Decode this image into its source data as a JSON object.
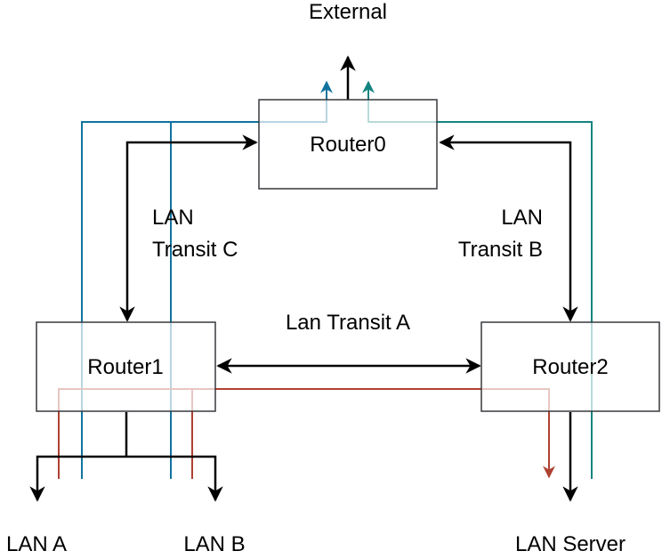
{
  "labels": {
    "external": "External",
    "router0": "Router0",
    "router1": "Router1",
    "router2": "Router2",
    "transit_c_line1": "LAN",
    "transit_c_line2": "Transit C",
    "transit_b_line1": "LAN",
    "transit_b_line2": "Transit B",
    "transit_a": "Lan Transit A",
    "lan_a": "LAN A",
    "lan_b": "LAN B",
    "lan_server": "LAN Server"
  },
  "colors": {
    "line": "#000000",
    "box_border": "#36393d",
    "path_blue": "#10739e",
    "path_teal": "#12847f",
    "path_red": "#ae4132",
    "box_fill": "#ffffff"
  }
}
